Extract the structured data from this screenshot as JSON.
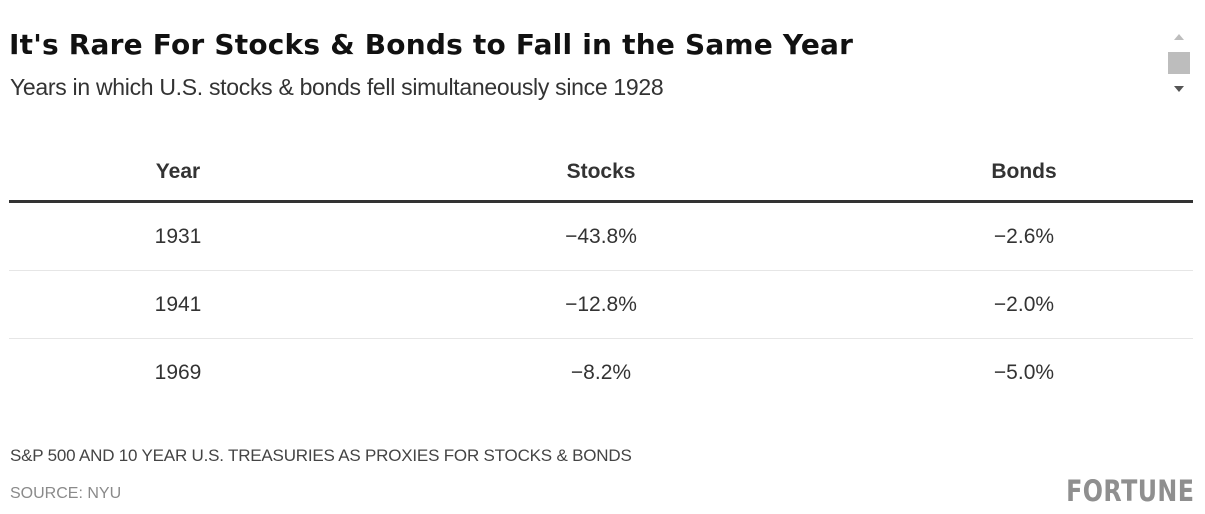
{
  "chart_data": {
    "type": "table",
    "title": "It's Rare For Stocks & Bonds to Fall in the Same Year",
    "subtitle": "Years in which U.S. stocks & bonds fell simultaneously since 1928",
    "columns": [
      "Year",
      "Stocks",
      "Bonds"
    ],
    "rows": [
      {
        "year": "1931",
        "stocks": "−43.8%",
        "bonds": "−2.6%"
      },
      {
        "year": "1941",
        "stocks": "−12.8%",
        "bonds": "−2.0%"
      },
      {
        "year": "1969",
        "stocks": "−8.2%",
        "bonds": "−5.0%"
      }
    ],
    "values": {
      "stocks": [
        -43.8,
        -12.8,
        -8.2
      ],
      "bonds": [
        -2.6,
        -2.0,
        -5.0
      ]
    },
    "footnote": "S&P 500 AND 10 YEAR U.S. TREASURIES AS PROXIES FOR STOCKS & BONDS",
    "source": "SOURCE: NYU"
  },
  "branding": {
    "logo_text": "FORTUNE"
  },
  "scrollbar": {
    "up_icon": "scroll-up-arrow",
    "down_icon": "scroll-down-arrow"
  }
}
